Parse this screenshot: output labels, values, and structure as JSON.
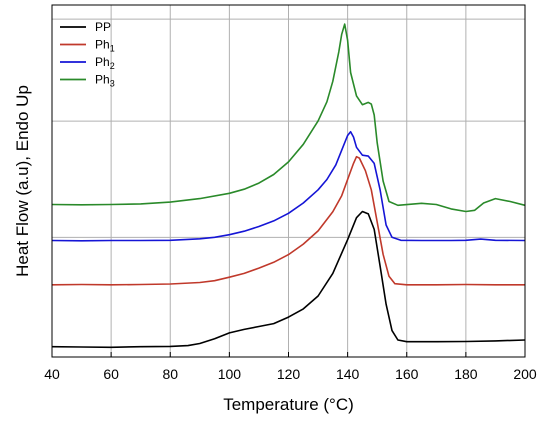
{
  "chart_data": {
    "type": "line",
    "title": "",
    "xlabel": "Temperature (°C)",
    "ylabel": "Heat Flow (a.u), Endo Up",
    "xlim": [
      40,
      200
    ],
    "xticks": [
      "40",
      "60",
      "80",
      "100",
      "120",
      "140",
      "160",
      "180",
      "200"
    ],
    "yticks_shown": false,
    "grid": true,
    "legend_position": "top-left",
    "series": [
      {
        "name": "PP",
        "legend_main": "PP",
        "legend_sub": "",
        "color": "#000000",
        "points": [
          [
            40,
            3.5
          ],
          [
            50,
            3.4
          ],
          [
            60,
            3.3
          ],
          [
            70,
            3.5
          ],
          [
            80,
            3.6
          ],
          [
            86,
            3.9
          ],
          [
            90,
            4.6
          ],
          [
            95,
            6.2
          ],
          [
            100,
            8.2
          ],
          [
            105,
            9.4
          ],
          [
            110,
            10.4
          ],
          [
            115,
            11.4
          ],
          [
            120,
            13.6
          ],
          [
            125,
            16.4
          ],
          [
            130,
            20.8
          ],
          [
            135,
            28.5
          ],
          [
            140,
            40.0
          ],
          [
            143,
            47.5
          ],
          [
            145,
            49.6
          ],
          [
            147,
            48.8
          ],
          [
            149,
            43.5
          ],
          [
            151,
            31.0
          ],
          [
            153,
            18.0
          ],
          [
            155,
            9.0
          ],
          [
            157,
            5.8
          ],
          [
            160,
            5.2
          ],
          [
            170,
            5.2
          ],
          [
            180,
            5.3
          ],
          [
            190,
            5.5
          ],
          [
            200,
            5.8
          ]
        ]
      },
      {
        "name": "Ph1",
        "legend_main": "Ph",
        "legend_sub": "1",
        "color": "#c0392b",
        "points": [
          [
            40,
            24.6
          ],
          [
            50,
            24.7
          ],
          [
            60,
            24.6
          ],
          [
            70,
            24.7
          ],
          [
            80,
            24.9
          ],
          [
            90,
            25.4
          ],
          [
            95,
            26.0
          ],
          [
            100,
            27.2
          ],
          [
            105,
            28.5
          ],
          [
            110,
            30.3
          ],
          [
            115,
            32.3
          ],
          [
            120,
            34.9
          ],
          [
            125,
            38.5
          ],
          [
            130,
            43.0
          ],
          [
            135,
            49.5
          ],
          [
            138,
            55.0
          ],
          [
            140,
            60.5
          ],
          [
            142,
            66.0
          ],
          [
            143,
            68.3
          ],
          [
            144,
            67.8
          ],
          [
            146,
            63.5
          ],
          [
            148,
            57.0
          ],
          [
            150,
            46.0
          ],
          [
            152,
            35.0
          ],
          [
            154,
            27.5
          ],
          [
            156,
            25.0
          ],
          [
            160,
            24.6
          ],
          [
            170,
            24.6
          ],
          [
            180,
            24.7
          ],
          [
            190,
            24.6
          ],
          [
            200,
            24.6
          ]
        ]
      },
      {
        "name": "Ph2",
        "legend_main": "Ph",
        "legend_sub": "2",
        "color": "#1515d6",
        "points": [
          [
            40,
            39.7
          ],
          [
            50,
            39.6
          ],
          [
            60,
            39.7
          ],
          [
            70,
            39.7
          ],
          [
            80,
            39.8
          ],
          [
            90,
            40.3
          ],
          [
            95,
            40.8
          ],
          [
            100,
            41.7
          ],
          [
            105,
            42.9
          ],
          [
            110,
            44.5
          ],
          [
            115,
            46.4
          ],
          [
            120,
            49.0
          ],
          [
            125,
            52.5
          ],
          [
            130,
            57.0
          ],
          [
            133,
            60.5
          ],
          [
            136,
            65.5
          ],
          [
            138,
            70.5
          ],
          [
            140,
            75.5
          ],
          [
            141,
            76.8
          ],
          [
            142,
            75.0
          ],
          [
            143,
            71.5
          ],
          [
            145,
            68.8
          ],
          [
            147,
            68.5
          ],
          [
            149,
            66.0
          ],
          [
            151,
            57.0
          ],
          [
            153,
            45.0
          ],
          [
            155,
            40.8
          ],
          [
            158,
            39.8
          ],
          [
            165,
            39.7
          ],
          [
            175,
            39.7
          ],
          [
            180,
            39.8
          ],
          [
            185,
            40.2
          ],
          [
            190,
            39.8
          ],
          [
            200,
            39.7
          ]
        ]
      },
      {
        "name": "Ph3",
        "legend_main": "Ph",
        "legend_sub": "3",
        "color": "#2a8a2a",
        "points": [
          [
            40,
            52.0
          ],
          [
            50,
            51.9
          ],
          [
            60,
            52.0
          ],
          [
            70,
            52.2
          ],
          [
            80,
            52.8
          ],
          [
            90,
            54.0
          ],
          [
            100,
            55.8
          ],
          [
            105,
            57.2
          ],
          [
            110,
            59.3
          ],
          [
            115,
            62.2
          ],
          [
            120,
            66.5
          ],
          [
            125,
            72.5
          ],
          [
            130,
            80.5
          ],
          [
            133,
            87.0
          ],
          [
            135,
            94.0
          ],
          [
            137,
            104.0
          ],
          [
            138,
            110.0
          ],
          [
            139,
            113.5
          ],
          [
            140,
            108.0
          ],
          [
            141,
            97.0
          ],
          [
            143,
            89.0
          ],
          [
            145,
            86.0
          ],
          [
            147,
            86.8
          ],
          [
            148,
            86.2
          ],
          [
            149,
            82.5
          ],
          [
            150,
            73.0
          ],
          [
            152,
            60.0
          ],
          [
            154,
            53.0
          ],
          [
            157,
            51.7
          ],
          [
            165,
            52.4
          ],
          [
            170,
            52.0
          ],
          [
            175,
            50.5
          ],
          [
            180,
            49.6
          ],
          [
            183,
            50.0
          ],
          [
            186,
            52.5
          ],
          [
            190,
            54.0
          ],
          [
            195,
            53.0
          ],
          [
            200,
            51.7
          ]
        ]
      }
    ]
  }
}
